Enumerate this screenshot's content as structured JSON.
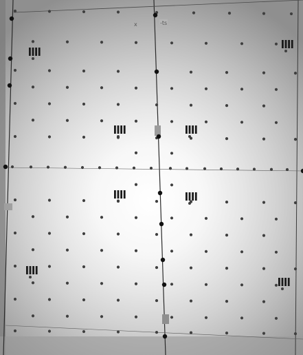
{
  "image": {
    "kind": "grayscale photo of a calibration target sheet taped to a wall",
    "colors": {
      "center": "#ffffff",
      "mid": "#d9d9d9",
      "edge": "#8f8f8f",
      "dot": "#3f3f3f",
      "line": "#2a2a2a"
    },
    "marker_count": 8,
    "visible_text": [
      "x",
      "-ts"
    ]
  }
}
